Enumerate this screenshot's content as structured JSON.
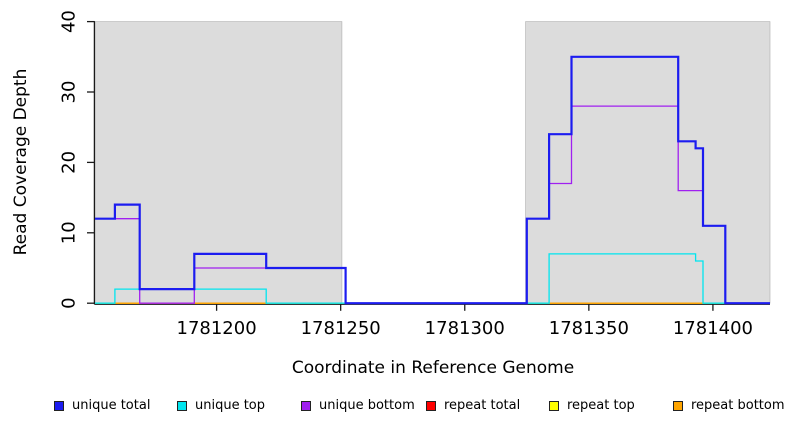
{
  "chart_data": {
    "type": "line",
    "subtype": "step",
    "title": "",
    "xlabel": "Coordinate in Reference Genome",
    "ylabel": "Read Coverage Depth",
    "xlim": [
      1781151,
      1781423
    ],
    "ylim": [
      0,
      40
    ],
    "xticks": [
      1781200,
      1781250,
      1781300,
      1781350,
      1781400
    ],
    "yticks": [
      0,
      10,
      20,
      30,
      40
    ],
    "grid": false,
    "legend_position": "bottom",
    "colors": {
      "background": "#FFFFFF",
      "shade": "#DCDCDC",
      "shade_border": "#ADADAD",
      "axis": "#1A1A1A"
    },
    "shaded_regions": [
      {
        "from": 1781151,
        "to": 1781250.5
      },
      {
        "from": 1781324.5,
        "to": 1781423
      }
    ],
    "series": [
      {
        "name": "repeat total",
        "color": "#FF0000",
        "width": 1.2,
        "points": [
          [
            1781151,
            0
          ],
          [
            1781423,
            0
          ]
        ]
      },
      {
        "name": "repeat top",
        "color": "#FFFF00",
        "width": 1.2,
        "points": [
          [
            1781151,
            0
          ],
          [
            1781423,
            0
          ]
        ]
      },
      {
        "name": "repeat bottom",
        "color": "#FFA500",
        "width": 1.4,
        "points": [
          [
            1781151,
            0
          ],
          [
            1781423,
            0
          ]
        ]
      },
      {
        "name": "unique bottom",
        "color": "#A020F0",
        "width": 1.3,
        "points": [
          [
            1781151,
            12
          ],
          [
            1781169,
            0
          ],
          [
            1781191,
            5
          ],
          [
            1781252,
            0
          ],
          [
            1781325,
            12
          ],
          [
            1781334,
            17
          ],
          [
            1781343,
            28
          ],
          [
            1781386,
            16
          ],
          [
            1781396,
            11
          ],
          [
            1781405,
            0
          ],
          [
            1781423,
            0
          ]
        ]
      },
      {
        "name": "unique top",
        "color": "#00E5EE",
        "width": 1.3,
        "points": [
          [
            1781151,
            0
          ],
          [
            1781159,
            2
          ],
          [
            1781220,
            0
          ],
          [
            1781334,
            7
          ],
          [
            1781393,
            6
          ],
          [
            1781396,
            0
          ],
          [
            1781423,
            0
          ]
        ]
      },
      {
        "name": "unique total",
        "color": "#1C1CF0",
        "width": 2.2,
        "points": [
          [
            1781151,
            12
          ],
          [
            1781159,
            14
          ],
          [
            1781169,
            2
          ],
          [
            1781191,
            7
          ],
          [
            1781220,
            5
          ],
          [
            1781252,
            0
          ],
          [
            1781325,
            12
          ],
          [
            1781334,
            24
          ],
          [
            1781343,
            35
          ],
          [
            1781386,
            23
          ],
          [
            1781393,
            22
          ],
          [
            1781396,
            11
          ],
          [
            1781405,
            0
          ],
          [
            1781423,
            0
          ]
        ]
      }
    ],
    "legend": [
      {
        "label": "unique total",
        "color": "#1C1CF0"
      },
      {
        "label": "unique top",
        "color": "#00E5EE"
      },
      {
        "label": "unique bottom",
        "color": "#A020F0"
      },
      {
        "label": "repeat total",
        "color": "#FF0000"
      },
      {
        "label": "repeat top",
        "color": "#FFFF00"
      },
      {
        "label": "repeat bottom",
        "color": "#FFA500"
      }
    ]
  }
}
